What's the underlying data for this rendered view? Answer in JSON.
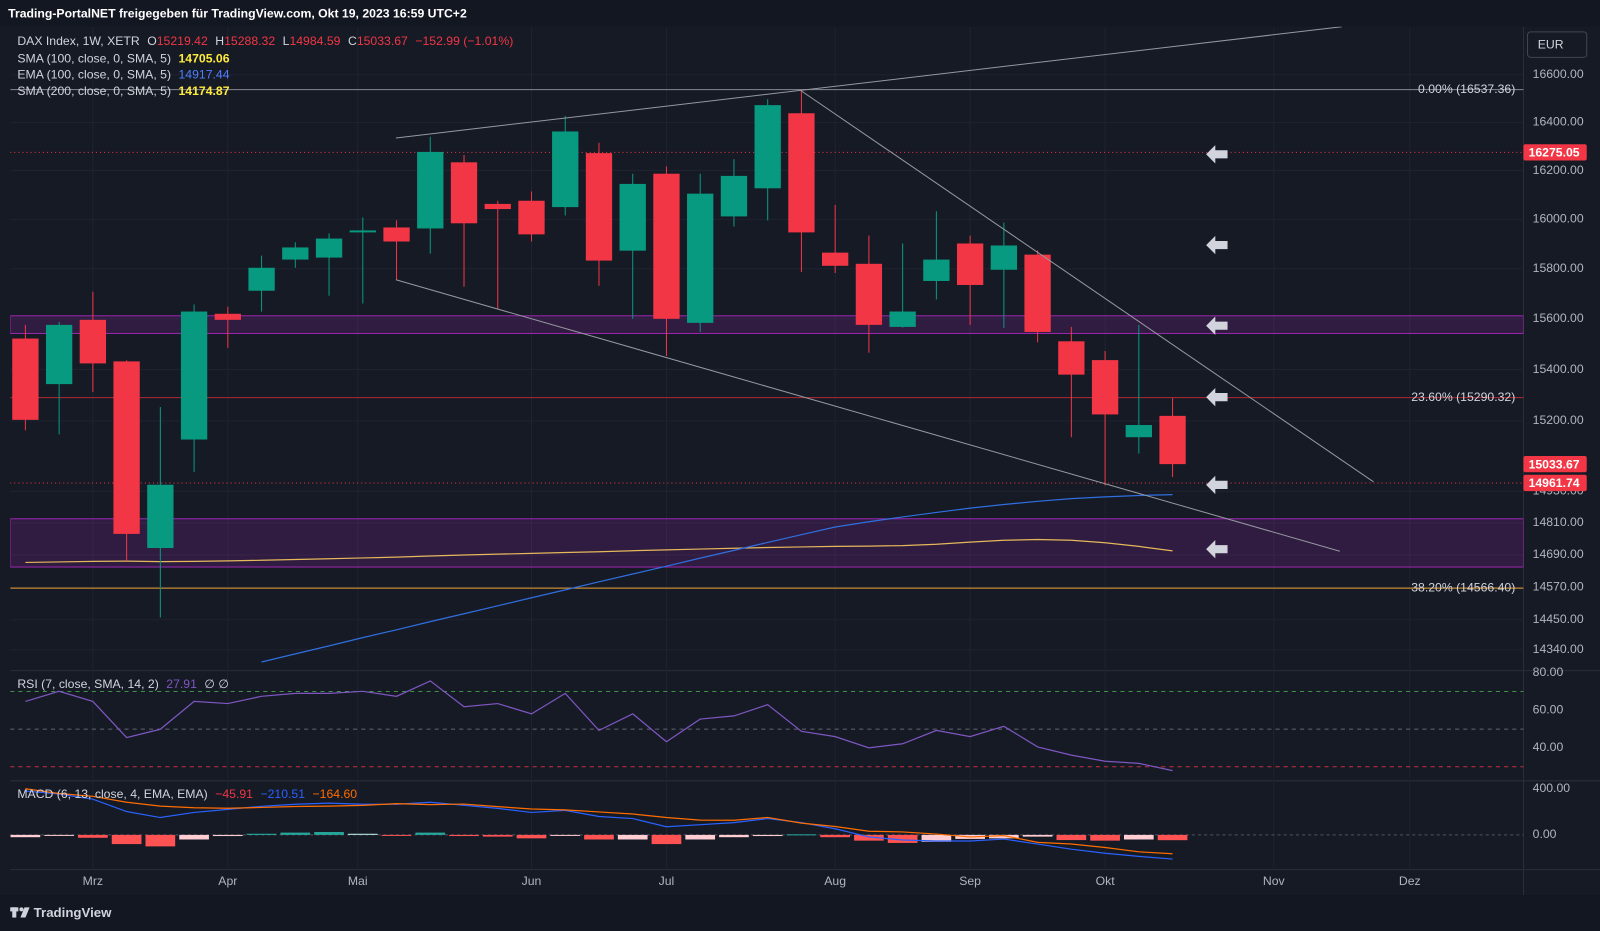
{
  "header": {
    "title": "Trading-PortalNET freigegeben für TradingView.com, Okt 19, 2023 16:59 UTC+2",
    "currency": "EUR",
    "footer": "TradingView"
  },
  "chart_data": [
    {
      "type": "candlestick",
      "title": "DAX Index, 1W, XETR",
      "ohlc_labels": [
        "O",
        "H",
        "L",
        "C"
      ],
      "change": "−152.99 (−1.01%)",
      "log_scale": true,
      "grid": true,
      "xlim": [
        -0.45,
        44.4
      ],
      "xticks": [
        {
          "value": 2,
          "label": "Mrz"
        },
        {
          "value": 6,
          "label": "Apr"
        },
        {
          "value": 9.85,
          "label": "Mai"
        },
        {
          "value": 15,
          "label": "Jun"
        },
        {
          "value": 19,
          "label": "Jul"
        },
        {
          "value": 24,
          "label": "Aug"
        },
        {
          "value": 28,
          "label": "Sep"
        },
        {
          "value": 32,
          "label": "Okt"
        },
        {
          "value": 37,
          "label": "Nov"
        },
        {
          "value": 41.03,
          "label": "Dez"
        }
      ],
      "ylim": [
        14264,
        16804
      ],
      "yticks": [
        {
          "value": 16600,
          "label": "16600.00"
        },
        {
          "value": 16400,
          "label": "16400.00"
        },
        {
          "value": 16200,
          "label": "16200.00"
        },
        {
          "value": 16000,
          "label": "16000.00"
        },
        {
          "value": 15800,
          "label": "15800.00"
        },
        {
          "value": 15600,
          "label": "15600.00"
        },
        {
          "value": 15400,
          "label": "15400.00"
        },
        {
          "value": 15200,
          "label": "15200.00"
        },
        {
          "value": 14930,
          "label": "14930.00"
        },
        {
          "value": 14810,
          "label": "14810.00"
        },
        {
          "value": 14690,
          "label": "14690.00"
        },
        {
          "value": 14570,
          "label": "14570.00"
        },
        {
          "value": 14450,
          "label": "14450.00"
        },
        {
          "value": 14340,
          "label": "14340.00"
        }
      ],
      "up_color": "#089981",
      "down_color": "#f23645",
      "open": [
        15522,
        15343,
        15596,
        15432,
        14716,
        15128,
        15620,
        15712,
        15837,
        15845,
        15947,
        15967,
        15963,
        16234,
        16063,
        16076,
        16050,
        16272,
        15873,
        16187,
        15584,
        16012,
        16127,
        16438,
        15865,
        15820,
        15568,
        15751,
        15902,
        15796,
        15857,
        15511,
        15437,
        15137,
        15219.42
      ],
      "high": [
        15576,
        15588,
        15708,
        15436,
        15254,
        15657,
        15648,
        15853,
        15907,
        15943,
        16008,
        15996,
        16340,
        16264,
        16076,
        16114,
        16427,
        16315,
        16187,
        16217,
        16187,
        16247,
        16497,
        16537.36,
        16059,
        15934,
        15902,
        16033,
        15934,
        15987,
        15874,
        15568,
        15473,
        15576,
        15288.32
      ],
      "low": [
        15164,
        15148,
        15312,
        14668,
        14458,
        15004,
        15485,
        15629,
        15804,
        15692,
        15661,
        15755,
        15861,
        15728,
        15641,
        15910,
        16016,
        15732,
        15600,
        15453,
        15548,
        15971,
        15996,
        15787,
        15783,
        15466,
        15565,
        15677,
        15576,
        15564,
        15507,
        15137,
        14952,
        15074,
        14984.59
      ],
      "close": [
        15204,
        15576,
        15424,
        14769,
        14955,
        15629,
        15596,
        15804,
        15886,
        15922,
        15955,
        15910,
        16277,
        15984,
        16042,
        15939,
        16362,
        15833,
        16145,
        15600,
        16105,
        16178,
        16472,
        15947,
        15812,
        15576,
        15629,
        15837,
        15735,
        15894,
        15548,
        15380,
        15225,
        15184,
        15033.67
      ],
      "series": [
        {
          "name": "SMA (100, close, 0, SMA, 5)",
          "color": "#e5b85c",
          "legend_color": "#ffeb3b",
          "values": [
            14662,
            14664,
            14666,
            14667,
            14665,
            14666,
            14668,
            14670,
            14673,
            14676,
            14679,
            14682,
            14686,
            14690,
            14693,
            14696,
            14699,
            14702,
            14706,
            14709,
            14712,
            14715,
            14718,
            14720,
            14722,
            14723,
            14725,
            14730,
            14738,
            14745,
            14748,
            14745,
            14736,
            14722,
            14705.06
          ]
        },
        {
          "name": "EMA (100, close, 0, SMA, 5)",
          "color": "#2f6fe0",
          "legend_color": "#4d7fff",
          "values": [
            null,
            null,
            null,
            null,
            null,
            null,
            null,
            14295,
            14325,
            14354,
            14384,
            14413,
            14443,
            14472,
            14501,
            14531,
            14560,
            14590,
            14619,
            14648,
            14678,
            14707,
            14737,
            14766,
            14795,
            14815,
            14833,
            14850,
            14866,
            14880,
            14892,
            14902,
            14909,
            14914,
            14917.44
          ]
        },
        {
          "name": "SMA (200, close, 0, SMA, 5)",
          "color": "#e5b85c",
          "legend_color": "#ffeb3b",
          "values": [
            null,
            null,
            null,
            null,
            null,
            null,
            null,
            null,
            null,
            null,
            null,
            null,
            null,
            null,
            null,
            null,
            null,
            null,
            null,
            null,
            null,
            null,
            null,
            null,
            null,
            null,
            null,
            null,
            null,
            null,
            null,
            null,
            null,
            null,
            14174.87
          ]
        }
      ],
      "levels": [
        {
          "value": 16537.36,
          "label": "0.00% (16537.36)",
          "color": "#787b86"
        },
        {
          "value": 15290.32,
          "label": "23.60% (15290.32)",
          "color": "#b22833"
        },
        {
          "value": 14566.4,
          "label": "38.20% (14566.40)",
          "color": "#f0a030"
        }
      ],
      "price_lines": [
        {
          "value": 16275.05,
          "color": "#f23645"
        },
        {
          "value": 14961.74,
          "color": "#f23645"
        }
      ],
      "zones": [
        {
          "from": 15542,
          "to": 15612
        },
        {
          "from": 14645,
          "to": 14826
        }
      ],
      "zone_color": "#9c27b0"
    },
    {
      "type": "rsi",
      "title": "RSI (7, close, SMA, 14, 2)",
      "extra": "∅ ∅",
      "color": "#7e57c2",
      "ylim": [
        22.5,
        81.1
      ],
      "yticks": [
        {
          "value": 80,
          "label": "80.00"
        },
        {
          "value": 60,
          "label": "60.00"
        },
        {
          "value": 40,
          "label": "40.00"
        }
      ],
      "levels": [
        70,
        50,
        30
      ],
      "level_colors": [
        "#4caf50",
        "#787b86",
        "#f23645"
      ],
      "values": [
        64.7,
        70.1,
        64.7,
        45.5,
        49.9,
        64.7,
        63.6,
        67.4,
        69,
        69,
        70.1,
        67.4,
        75.6,
        61.9,
        63.6,
        58.1,
        69,
        49.3,
        58.1,
        43.3,
        55.3,
        57,
        63,
        48.8,
        46,
        40,
        42.2,
        49.3,
        46,
        51.5,
        40.5,
        36.2,
        32.9,
        31.8,
        27.91
      ]
    },
    {
      "type": "macd",
      "title": "MACD (6, 13, close, 4, EMA, EMA)",
      "ylim": [
        -302,
        471
      ],
      "yticks": [
        {
          "value": 400,
          "label": "400.00"
        },
        {
          "value": 0,
          "label": "0.00"
        }
      ],
      "hist_colors": [
        "#26a69a",
        "#b2dfdb",
        "#ff5252",
        "#ffcdd2"
      ],
      "histogram": {
        "color": "#f23645",
        "legend_value": "−45.91",
        "values": [
          -20,
          -5,
          -25,
          -80,
          -100,
          -40,
          -10,
          10,
          20,
          25,
          10,
          -5,
          20,
          -10,
          -15,
          -30,
          -5,
          -40,
          -40,
          -80,
          -40,
          -20,
          -10,
          5,
          -20,
          -50,
          -70,
          -60,
          -35,
          -30,
          -15,
          -45,
          -50,
          -40,
          -45.91
        ]
      },
      "macd": {
        "color": "#2962ff",
        "legend_value": "−210.51",
        "values": [
          382,
          356,
          311,
          204,
          151,
          196,
          222,
          249,
          267,
          276,
          267,
          267,
          284,
          258,
          231,
          196,
          213,
          160,
          142,
          71,
          89,
          107,
          142,
          107,
          53,
          -18,
          -44,
          -53,
          -53,
          -36,
          -80,
          -124,
          -160,
          -187,
          -210.51
        ]
      },
      "signal": {
        "color": "#ff6d00",
        "legend_value": "−164.60",
        "values": [
          402,
          361,
          336,
          284,
          251,
          236,
          232,
          239,
          247,
          251,
          257,
          272,
          264,
          268,
          246,
          226,
          218,
          200,
          182,
          151,
          129,
          127,
          152,
          102,
          73,
          32,
          26,
          7,
          -18,
          -6,
          -65,
          -79,
          -110,
          -147,
          -164.6
        ]
      }
    }
  ]
}
